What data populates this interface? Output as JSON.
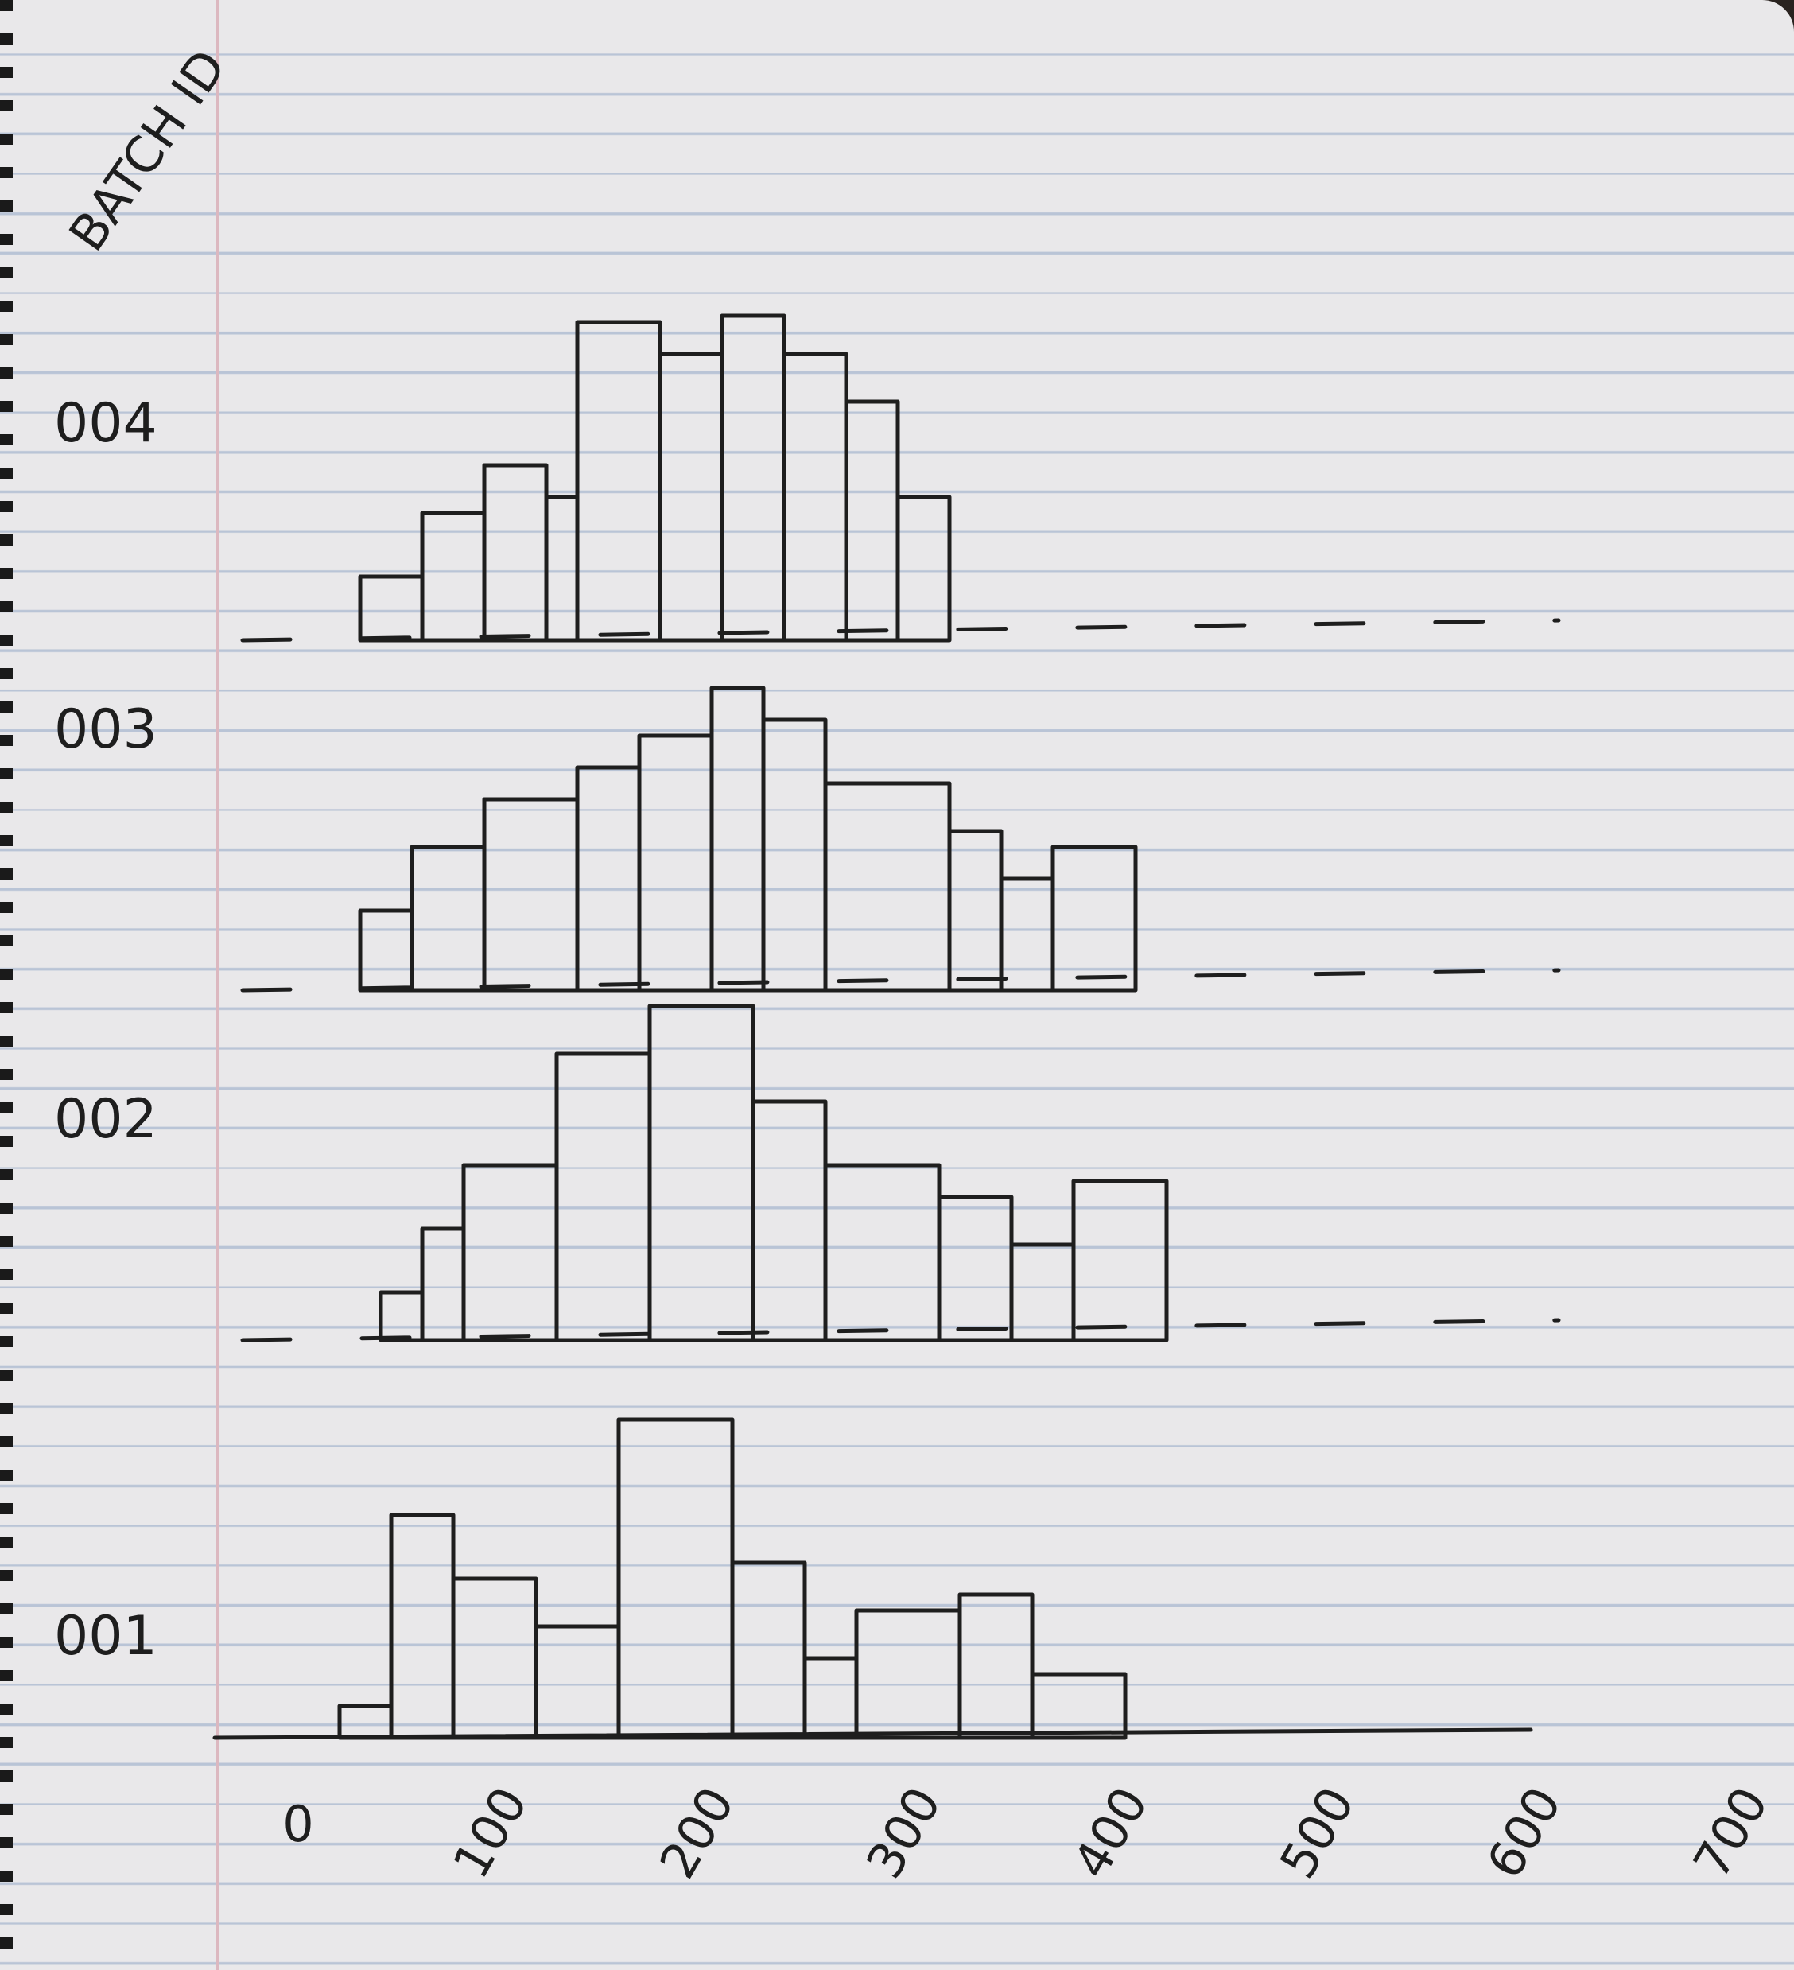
{
  "chart_data": {
    "type": "bar",
    "axis_title": "BATCH ID",
    "x_ticks": [
      "0",
      "100",
      "200",
      "300",
      "400",
      "500",
      "600",
      "700"
    ],
    "xlim": [
      0,
      700
    ],
    "grid": false,
    "legend": "none",
    "series": [
      {
        "name": "004",
        "bins": [
          [
            30,
            60
          ],
          [
            60,
            90
          ],
          [
            90,
            120
          ],
          [
            120,
            135
          ],
          [
            135,
            175
          ],
          [
            175,
            205
          ],
          [
            205,
            235
          ],
          [
            235,
            265
          ],
          [
            265,
            290
          ],
          [
            290,
            315
          ],
          [
            315,
            360
          ]
        ],
        "values": [
          0.2,
          0.4,
          0.55,
          0.45,
          1.0,
          0.9,
          1.02,
          0.9,
          0.75,
          0.45,
          0.0
        ]
      },
      {
        "name": "003",
        "bins": [
          [
            30,
            55
          ],
          [
            55,
            90
          ],
          [
            90,
            135
          ],
          [
            135,
            165
          ],
          [
            165,
            200
          ],
          [
            200,
            225
          ],
          [
            225,
            255
          ],
          [
            255,
            315
          ],
          [
            315,
            340
          ],
          [
            340,
            365
          ],
          [
            365,
            405
          ]
        ],
        "values": [
          0.25,
          0.45,
          0.6,
          0.7,
          0.8,
          0.95,
          0.85,
          0.65,
          0.5,
          0.35,
          0.45
        ]
      },
      {
        "name": "002",
        "bins": [
          [
            40,
            60
          ],
          [
            60,
            80
          ],
          [
            80,
            125
          ],
          [
            125,
            170
          ],
          [
            170,
            220
          ],
          [
            220,
            255
          ],
          [
            255,
            310
          ],
          [
            310,
            345
          ],
          [
            345,
            375
          ],
          [
            375,
            420
          ]
        ],
        "values": [
          0.15,
          0.35,
          0.55,
          0.9,
          1.05,
          0.75,
          0.55,
          0.45,
          0.3,
          0.5
        ]
      },
      {
        "name": "001",
        "bins": [
          [
            20,
            45
          ],
          [
            45,
            75
          ],
          [
            75,
            115
          ],
          [
            115,
            155
          ],
          [
            155,
            210
          ],
          [
            210,
            245
          ],
          [
            245,
            270
          ],
          [
            270,
            320
          ],
          [
            320,
            355
          ],
          [
            355,
            400
          ]
        ],
        "values": [
          0.1,
          0.7,
          0.5,
          0.35,
          1.0,
          0.55,
          0.25,
          0.4,
          0.45,
          0.2
        ]
      }
    ]
  },
  "colors": {
    "paper": "#e9e8ea",
    "rule": "#b9c4d6",
    "margin": "#dcb8c0",
    "ink": "#1e1e1e"
  }
}
